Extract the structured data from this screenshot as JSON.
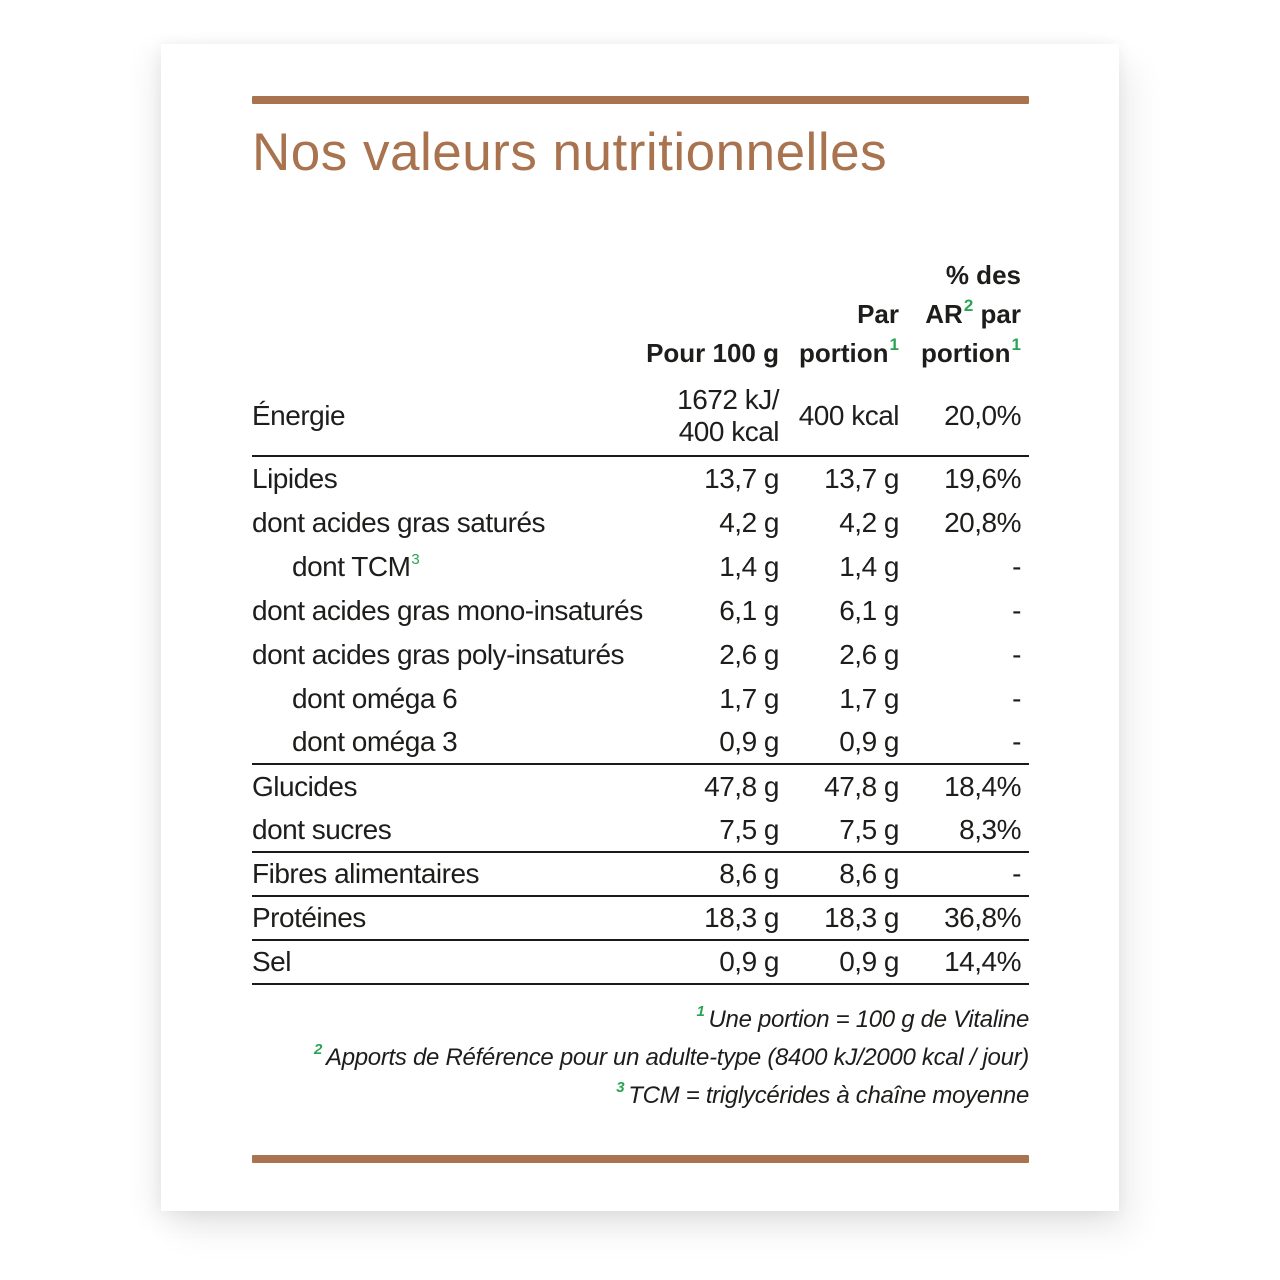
{
  "colors": {
    "accent_brown": "#a8734e",
    "accent_green": "#2aa452",
    "text": "#1d1d1b",
    "line": "#1a1a1a"
  },
  "page": {
    "title": "Nos valeurs nutritionnelles"
  },
  "table": {
    "header": {
      "per100": "Pour 100 g",
      "portion_line1": "Par",
      "portion_line2": "portion",
      "portion_sup": "1",
      "ar_line1": "% des",
      "ar_line2a": "AR",
      "ar_sup2": "2",
      "ar_line2b": " par",
      "ar_line3": "portion",
      "ar_sup1": "1"
    },
    "rows": [
      {
        "label": "Énergie",
        "per100": "1672 kJ/\n400 kcal",
        "portion": "400 kcal",
        "ar": "20,0%"
      },
      {
        "label": "Lipides",
        "per100": "13,7 g",
        "portion": "13,7 g",
        "ar": "19,6%"
      },
      {
        "label": "dont acides gras saturés",
        "per100": "4,2 g",
        "portion": "4,2 g",
        "ar": "20,8%"
      },
      {
        "label": "dont TCM",
        "sup": "3",
        "per100": "1,4 g",
        "portion": "1,4 g",
        "ar": "-"
      },
      {
        "label": "dont acides gras mono-insaturés",
        "per100": "6,1 g",
        "portion": "6,1 g",
        "ar": "-"
      },
      {
        "label": "dont acides gras poly-insaturés",
        "per100": "2,6 g",
        "portion": "2,6 g",
        "ar": "-"
      },
      {
        "label": "dont oméga 6",
        "per100": "1,7 g",
        "portion": "1,7 g",
        "ar": "-"
      },
      {
        "label": "dont oméga 3",
        "per100": "0,9 g",
        "portion": "0,9 g",
        "ar": "-"
      },
      {
        "label": "Glucides",
        "per100": "47,8 g",
        "portion": "47,8 g",
        "ar": "18,4%"
      },
      {
        "label": "dont sucres",
        "per100": "7,5 g",
        "portion": "7,5 g",
        "ar": "8,3%"
      },
      {
        "label": "Fibres alimentaires",
        "per100": "8,6 g",
        "portion": "8,6 g",
        "ar": "-"
      },
      {
        "label": "Protéines",
        "per100": "18,3 g",
        "portion": "18,3 g",
        "ar": "36,8%"
      },
      {
        "label": "Sel",
        "per100": "0,9 g",
        "portion": "0,9 g",
        "ar": "14,4%"
      }
    ]
  },
  "footnotes": [
    {
      "sup": "1",
      "text": "Une portion = 100 g de Vitaline"
    },
    {
      "sup": "2",
      "text": "Apports de Référence pour un adulte-type (8400 kJ/2000 kcal / jour)"
    },
    {
      "sup": "3",
      "text": "TCM = triglycérides à chaîne moyenne"
    }
  ]
}
